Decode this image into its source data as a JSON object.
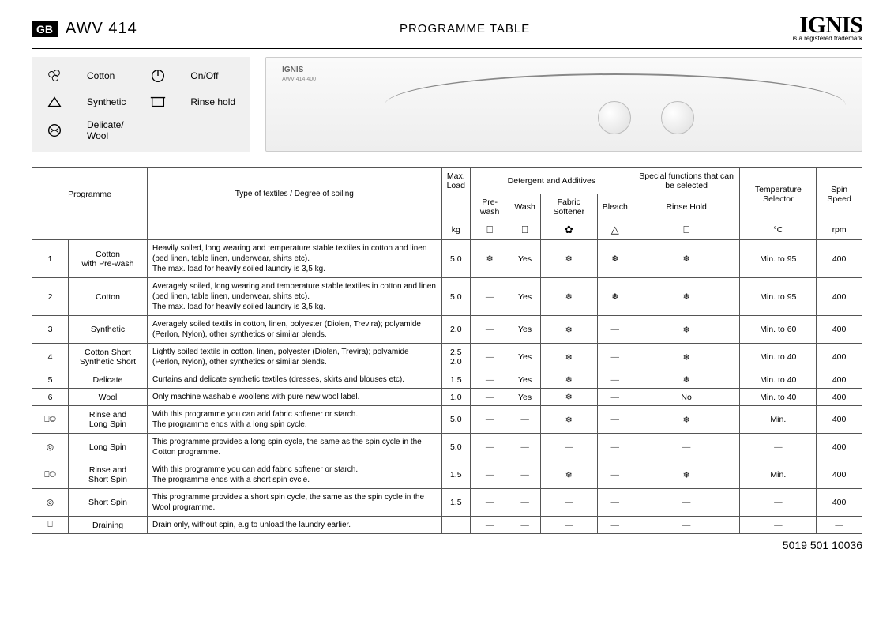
{
  "header": {
    "country": "GB",
    "model": "AWV 414",
    "title": "PROGRAMME TABLE",
    "brand": "IGNIS",
    "brand_sub": "is a registered trademark"
  },
  "legend": [
    {
      "icon": "cotton",
      "label": "Cotton"
    },
    {
      "icon": "onoff",
      "label": "On/Off"
    },
    {
      "icon": "synthetic",
      "label": "Synthetic"
    },
    {
      "icon": "rinsehold",
      "label": "Rinse hold"
    },
    {
      "icon": "delicate",
      "label": "Delicate/\nWool"
    }
  ],
  "panel": {
    "brand": "IGNIS",
    "model": "AWV 414  400"
  },
  "table": {
    "head": {
      "programme": "Programme",
      "type": "Type of textiles / Degree of soiling",
      "maxload": "Max.\nLoad",
      "detergent": "Detergent and Additives",
      "special": "Special functions that can be selected",
      "temp": "Temperature Selector",
      "spin": "Spin Speed",
      "prewash": "Pre-wash",
      "wash": "Wash",
      "softener": "Fabric Softener",
      "bleach": "Bleach",
      "rinsehold": "Rinse Hold",
      "kg": "kg",
      "c": "°C",
      "rpm": "rpm"
    },
    "rows": [
      {
        "num": "1",
        "name": "Cotton\nwith Pre-wash",
        "desc": "Heavily soiled, long wearing and temperature stable textiles in cotton and linen (bed linen, table linen, underwear, shirts etc).\nThe max. load for heavily soiled laundry is 3,5 kg.",
        "load": "5.0",
        "prewash": "❄",
        "wash": "Yes",
        "softener": "❄",
        "bleach": "❄",
        "rinsehold": "❄",
        "temp": "Min. to 95",
        "spin": "400"
      },
      {
        "num": "2",
        "name": "Cotton",
        "desc": "Averagely soiled, long wearing and temperature stable textiles in cotton and linen (bed linen, table linen, underwear, shirts etc).\nThe max. load for heavily soiled laundry is 3,5 kg.",
        "load": "5.0",
        "prewash": "—",
        "wash": "Yes",
        "softener": "❄",
        "bleach": "❄",
        "rinsehold": "❄",
        "temp": "Min. to 95",
        "spin": "400"
      },
      {
        "num": "3",
        "name": "Synthetic",
        "desc": "Averagely soiled textils in cotton, linen, polyester (Diolen, Trevira); polyamide (Perlon, Nylon), other synthetics or similar blends.",
        "load": "2.0",
        "prewash": "—",
        "wash": "Yes",
        "softener": "❄",
        "bleach": "—",
        "rinsehold": "❄",
        "temp": "Min. to 60",
        "spin": "400"
      },
      {
        "num": "4",
        "name": "Cotton Short\nSynthetic Short",
        "desc": "Lightly soiled textils in cotton, linen, polyester (Diolen, Trevira); polyamide (Perlon, Nylon), other synthetics or similar blends.",
        "load": "2.5\n2.0",
        "prewash": "—",
        "wash": "Yes",
        "softener": "❄",
        "bleach": "—",
        "rinsehold": "❄",
        "temp": "Min. to 40",
        "spin": "400"
      },
      {
        "num": "5",
        "name": "Delicate",
        "desc": "Curtains and delicate synthetic textiles (dresses, skirts and blouses etc).",
        "load": "1.5",
        "prewash": "—",
        "wash": "Yes",
        "softener": "❄",
        "bleach": "—",
        "rinsehold": "❄",
        "temp": "Min. to 40",
        "spin": "400"
      },
      {
        "num": "6",
        "name": "Wool",
        "desc": "Only machine washable woollens with pure new wool label.",
        "load": "1.0",
        "prewash": "—",
        "wash": "Yes",
        "softener": "❄",
        "bleach": "—",
        "rinsehold": "No",
        "temp": "Min. to 40",
        "spin": "400"
      },
      {
        "num": "⎕◎",
        "name": "Rinse and\nLong Spin",
        "desc": "With this programme you can add fabric softener or starch.\nThe programme ends with a long spin cycle.",
        "load": "5.0",
        "prewash": "—",
        "wash": "—",
        "softener": "❄",
        "bleach": "—",
        "rinsehold": "❄",
        "temp": "Min.",
        "spin": "400"
      },
      {
        "num": "◎",
        "name": "Long Spin",
        "desc": "This programme provides a long spin cycle, the same as the spin cycle in the Cotton programme.",
        "load": "5.0",
        "prewash": "—",
        "wash": "—",
        "softener": "—",
        "bleach": "—",
        "rinsehold": "—",
        "temp": "—",
        "spin": "400"
      },
      {
        "num": "⎕◎",
        "name": "Rinse and\nShort Spin",
        "desc": "With this programme you can add fabric softener or starch.\nThe programme ends with a short spin cycle.",
        "load": "1.5",
        "prewash": "—",
        "wash": "—",
        "softener": "❄",
        "bleach": "—",
        "rinsehold": "❄",
        "temp": "Min.",
        "spin": "400"
      },
      {
        "num": "◎",
        "name": "Short Spin",
        "desc": "This programme provides a short spin cycle, the same as the spin cycle in the Wool programme.",
        "load": "1.5",
        "prewash": "—",
        "wash": "—",
        "softener": "—",
        "bleach": "—",
        "rinsehold": "—",
        "temp": "—",
        "spin": "400"
      },
      {
        "num": "⎕",
        "name": "Draining",
        "desc": "Drain only, without spin, e.g to unload the laundry earlier.",
        "load": "",
        "prewash": "—",
        "wash": "—",
        "softener": "—",
        "bleach": "—",
        "rinsehold": "—",
        "temp": "—",
        "spin": "—"
      }
    ]
  },
  "footer": "5019 501 10036"
}
